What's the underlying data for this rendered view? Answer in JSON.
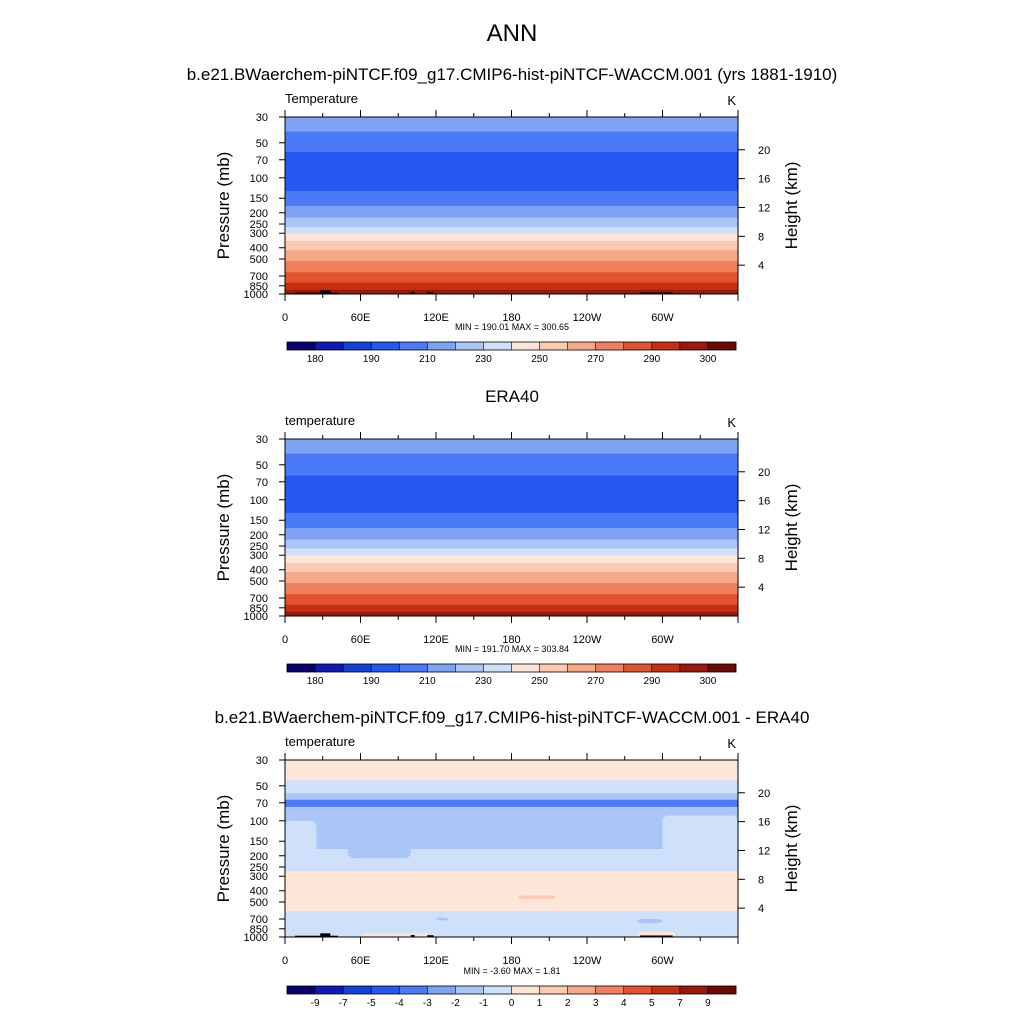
{
  "page": {
    "title": "ANN"
  },
  "chart_data": [
    {
      "type": "contour",
      "title": "b.e21.BWaerchem-piNTCF.f09_g17.CMIP6-hist-piNTCF-WACCM.001 (yrs 1881-1910)",
      "variable_label": "Temperature",
      "units_label": "K",
      "xlabel": "",
      "ylabel": "Pressure (mb)",
      "ylabel_right": "Height (km)",
      "x_ticks": [
        "0",
        "60E",
        "120E",
        "180",
        "120W",
        "60W"
      ],
      "x_tick_values": [
        0,
        60,
        120,
        180,
        240,
        300
      ],
      "xlim": [
        0,
        360
      ],
      "y_ticks": [
        "30",
        "50",
        "70",
        "100",
        "150",
        "200",
        "250",
        "300",
        "400",
        "500",
        "700",
        "850",
        "1000"
      ],
      "y_tick_values": [
        30,
        50,
        70,
        100,
        150,
        200,
        250,
        300,
        400,
        500,
        700,
        850,
        1000
      ],
      "ylim": [
        1000,
        30
      ],
      "height_ticks": [
        "4",
        "8",
        "12",
        "16",
        "20"
      ],
      "height_tick_values": [
        4,
        8,
        12,
        16,
        20
      ],
      "stats": "MIN = 190.01  MAX = 300.65",
      "min": 190.01,
      "max": 300.65,
      "colorbar_labels": [
        "180",
        "190",
        "210",
        "230",
        "250",
        "270",
        "290",
        "300"
      ],
      "colorbar_colors": [
        "#09006e",
        "#0e1ab5",
        "#1240d8",
        "#2657f2",
        "#4a7af5",
        "#7ea3f5",
        "#aac6f7",
        "#cee0fa",
        "#fde6d7",
        "#fbcab1",
        "#f7a887",
        "#f17f5e",
        "#e3522e",
        "#c53012",
        "#9a190a",
        "#6e0a04"
      ],
      "levels_by_pressure": [
        {
          "p_top": 30,
          "p_bot": 40,
          "color": "#7ea3f5"
        },
        {
          "p_top": 40,
          "p_bot": 60,
          "color": "#4a7af5"
        },
        {
          "p_top": 60,
          "p_bot": 130,
          "color": "#2657f2"
        },
        {
          "p_top": 130,
          "p_bot": 175,
          "color": "#4a7af5"
        },
        {
          "p_top": 175,
          "p_bot": 220,
          "color": "#7ea3f5"
        },
        {
          "p_top": 220,
          "p_bot": 265,
          "color": "#aac6f7"
        },
        {
          "p_top": 265,
          "p_bot": 300,
          "color": "#cee0fa"
        },
        {
          "p_top": 300,
          "p_bot": 350,
          "color": "#fde6d7"
        },
        {
          "p_top": 350,
          "p_bot": 420,
          "color": "#fbcab1"
        },
        {
          "p_top": 420,
          "p_bot": 520,
          "color": "#f7a887"
        },
        {
          "p_top": 520,
          "p_bot": 650,
          "color": "#f17f5e"
        },
        {
          "p_top": 650,
          "p_bot": 800,
          "color": "#e3522e"
        },
        {
          "p_top": 800,
          "p_bot": 920,
          "color": "#c53012"
        },
        {
          "p_top": 920,
          "p_bot": 1000,
          "color": "#9a190a"
        }
      ],
      "topography": [
        {
          "lon0": 8,
          "lon1": 42,
          "p": 975
        },
        {
          "lon0": 28,
          "lon1": 36,
          "p": 930
        },
        {
          "lon0": 100,
          "lon1": 103,
          "p": 960
        },
        {
          "lon0": 113,
          "lon1": 118,
          "p": 965
        },
        {
          "lon0": 282,
          "lon1": 308,
          "p": 970
        }
      ]
    },
    {
      "type": "contour",
      "title": "ERA40",
      "variable_label": "temperature",
      "units_label": "K",
      "xlabel": "",
      "ylabel": "Pressure (mb)",
      "ylabel_right": "Height (km)",
      "x_ticks": [
        "0",
        "60E",
        "120E",
        "180",
        "120W",
        "60W"
      ],
      "x_tick_values": [
        0,
        60,
        120,
        180,
        240,
        300
      ],
      "xlim": [
        0,
        360
      ],
      "y_ticks": [
        "30",
        "50",
        "70",
        "100",
        "150",
        "200",
        "250",
        "300",
        "400",
        "500",
        "700",
        "850",
        "1000"
      ],
      "y_tick_values": [
        30,
        50,
        70,
        100,
        150,
        200,
        250,
        300,
        400,
        500,
        700,
        850,
        1000
      ],
      "ylim": [
        1000,
        30
      ],
      "height_ticks": [
        "4",
        "8",
        "12",
        "16",
        "20"
      ],
      "height_tick_values": [
        4,
        8,
        12,
        16,
        20
      ],
      "stats": "MIN = 191.70  MAX = 303.84",
      "min": 191.7,
      "max": 303.84,
      "colorbar_labels": [
        "180",
        "190",
        "210",
        "230",
        "250",
        "270",
        "290",
        "300"
      ],
      "colorbar_colors": [
        "#09006e",
        "#0e1ab5",
        "#1240d8",
        "#2657f2",
        "#4a7af5",
        "#7ea3f5",
        "#aac6f7",
        "#cee0fa",
        "#fde6d7",
        "#fbcab1",
        "#f7a887",
        "#f17f5e",
        "#e3522e",
        "#c53012",
        "#9a190a",
        "#6e0a04"
      ],
      "levels_by_pressure": [
        {
          "p_top": 30,
          "p_bot": 40,
          "color": "#7ea3f5"
        },
        {
          "p_top": 40,
          "p_bot": 62,
          "color": "#4a7af5"
        },
        {
          "p_top": 62,
          "p_bot": 130,
          "color": "#2657f2"
        },
        {
          "p_top": 130,
          "p_bot": 175,
          "color": "#4a7af5"
        },
        {
          "p_top": 175,
          "p_bot": 220,
          "color": "#7ea3f5"
        },
        {
          "p_top": 220,
          "p_bot": 262,
          "color": "#aac6f7"
        },
        {
          "p_top": 262,
          "p_bot": 300,
          "color": "#cee0fa"
        },
        {
          "p_top": 300,
          "p_bot": 350,
          "color": "#fde6d7"
        },
        {
          "p_top": 350,
          "p_bot": 420,
          "color": "#fbcab1"
        },
        {
          "p_top": 420,
          "p_bot": 520,
          "color": "#f7a887"
        },
        {
          "p_top": 520,
          "p_bot": 650,
          "color": "#f17f5e"
        },
        {
          "p_top": 650,
          "p_bot": 800,
          "color": "#e3522e"
        },
        {
          "p_top": 800,
          "p_bot": 920,
          "color": "#c53012"
        },
        {
          "p_top": 920,
          "p_bot": 1000,
          "color": "#9a190a"
        }
      ],
      "topography": []
    },
    {
      "type": "contour",
      "title": "b.e21.BWaerchem-piNTCF.f09_g17.CMIP6-hist-piNTCF-WACCM.001 - ERA40",
      "variable_label": "temperature",
      "units_label": "K",
      "xlabel": "",
      "ylabel": "Pressure (mb)",
      "ylabel_right": "Height (km)",
      "x_ticks": [
        "0",
        "60E",
        "120E",
        "180",
        "120W",
        "60W"
      ],
      "x_tick_values": [
        0,
        60,
        120,
        180,
        240,
        300
      ],
      "xlim": [
        0,
        360
      ],
      "y_ticks": [
        "30",
        "50",
        "70",
        "100",
        "150",
        "200",
        "250",
        "300",
        "400",
        "500",
        "700",
        "850",
        "1000"
      ],
      "y_tick_values": [
        30,
        50,
        70,
        100,
        150,
        200,
        250,
        300,
        400,
        500,
        700,
        850,
        1000
      ],
      "ylim": [
        1000,
        30
      ],
      "height_ticks": [
        "4",
        "8",
        "12",
        "16",
        "20"
      ],
      "height_tick_values": [
        4,
        8,
        12,
        16,
        20
      ],
      "stats": "MIN =  -3.60  MAX =   1.81",
      "min": -3.6,
      "max": 1.81,
      "colorbar_labels": [
        "-9",
        "-7",
        "-5",
        "-4",
        "-3",
        "-2",
        "-1",
        "0",
        "1",
        "2",
        "3",
        "4",
        "5",
        "7",
        "9"
      ],
      "colorbar_colors": [
        "#09006e",
        "#0e1ab5",
        "#1240d8",
        "#2657f2",
        "#4a7af5",
        "#7ea3f5",
        "#aac6f7",
        "#cee0fa",
        "#fde6d7",
        "#fbcab1",
        "#f7a887",
        "#f17f5e",
        "#e3522e",
        "#c53012",
        "#9a190a",
        "#6e0a04"
      ],
      "levels_by_pressure": [
        {
          "p_top": 30,
          "p_bot": 45,
          "color": "#fde6d7"
        },
        {
          "p_top": 45,
          "p_bot": 58,
          "color": "#cee0fa"
        },
        {
          "p_top": 58,
          "p_bot": 66,
          "color": "#aac6f7"
        },
        {
          "p_top": 66,
          "p_bot": 76,
          "color": "#4a7af5"
        },
        {
          "p_top": 76,
          "p_bot": 175,
          "color": "#aac6f7"
        },
        {
          "p_top": 175,
          "p_bot": 270,
          "color": "#cee0fa"
        },
        {
          "p_top": 270,
          "p_bot": 600,
          "color": "#fde6d7"
        },
        {
          "p_top": 600,
          "p_bot": 1000,
          "color": "#cee0fa"
        }
      ],
      "patches": [
        {
          "lon0": 0,
          "lon1": 25,
          "p_top": 100,
          "p_bot": 200,
          "color": "#cee0fa"
        },
        {
          "lon0": 300,
          "lon1": 360,
          "p_top": 90,
          "p_bot": 230,
          "color": "#cee0fa"
        },
        {
          "lon0": 50,
          "lon1": 100,
          "p_top": 120,
          "p_bot": 210,
          "color": "#aac6f7"
        },
        {
          "lon0": 120,
          "lon1": 130,
          "p_top": 680,
          "p_bot": 720,
          "color": "#aac6f7"
        },
        {
          "lon0": 185,
          "lon1": 215,
          "p_top": 440,
          "p_bot": 470,
          "color": "#fbcab1"
        },
        {
          "lon0": 280,
          "lon1": 300,
          "p_top": 700,
          "p_bot": 760,
          "color": "#aac6f7"
        },
        {
          "lon0": 280,
          "lon1": 310,
          "p_top": 900,
          "p_bot": 1000,
          "color": "#fde6d7"
        },
        {
          "lon0": 60,
          "lon1": 115,
          "p_top": 930,
          "p_bot": 1000,
          "color": "#fde6d7"
        }
      ],
      "topography": [
        {
          "lon0": 8,
          "lon1": 42,
          "p": 975
        },
        {
          "lon0": 28,
          "lon1": 36,
          "p": 930
        },
        {
          "lon0": 100,
          "lon1": 103,
          "p": 960
        },
        {
          "lon0": 113,
          "lon1": 118,
          "p": 965
        },
        {
          "lon0": 282,
          "lon1": 308,
          "p": 970
        }
      ]
    }
  ]
}
